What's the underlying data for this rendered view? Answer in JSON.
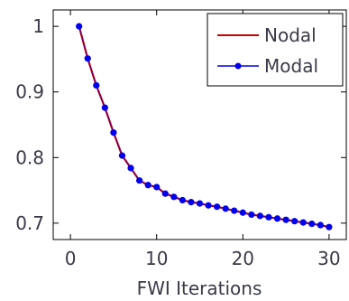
{
  "chart_data": {
    "type": "line",
    "title": "",
    "xlabel": "FWI Iterations",
    "ylabel": "",
    "xlim": [
      -2,
      32
    ],
    "ylim": [
      0.675,
      1.025
    ],
    "xticks": [
      0,
      10,
      20,
      30
    ],
    "yticks": [
      0.7,
      0.8,
      0.9,
      1
    ],
    "ytick_labels": [
      "0.7",
      "0.8",
      "0.9",
      "1"
    ],
    "grid": false,
    "legend": "top-right",
    "series": [
      {
        "name": "Nodal",
        "color": "#cc0000",
        "marker": "none",
        "x": [
          1,
          2,
          3,
          4,
          5,
          6,
          7,
          8,
          9,
          10,
          11,
          12,
          13,
          14,
          15,
          16,
          17,
          18,
          19,
          20,
          21,
          22,
          23,
          24,
          25,
          26,
          27,
          28,
          29,
          30
        ],
        "y": [
          1.0,
          0.951,
          0.91,
          0.876,
          0.838,
          0.803,
          0.784,
          0.765,
          0.758,
          0.755,
          0.745,
          0.74,
          0.735,
          0.732,
          0.73,
          0.727,
          0.725,
          0.722,
          0.719,
          0.716,
          0.713,
          0.711,
          0.709,
          0.707,
          0.705,
          0.703,
          0.701,
          0.699,
          0.697,
          0.694
        ]
      },
      {
        "name": "Modal",
        "color": "#0000ee",
        "marker": "circle",
        "x": [
          1,
          2,
          3,
          4,
          5,
          6,
          7,
          8,
          9,
          10,
          11,
          12,
          13,
          14,
          15,
          16,
          17,
          18,
          19,
          20,
          21,
          22,
          23,
          24,
          25,
          26,
          27,
          28,
          29,
          30
        ],
        "y": [
          1.0,
          0.951,
          0.91,
          0.876,
          0.838,
          0.803,
          0.784,
          0.765,
          0.758,
          0.755,
          0.745,
          0.74,
          0.735,
          0.732,
          0.73,
          0.727,
          0.725,
          0.722,
          0.719,
          0.716,
          0.713,
          0.711,
          0.709,
          0.707,
          0.705,
          0.703,
          0.701,
          0.699,
          0.697,
          0.694
        ]
      }
    ]
  }
}
